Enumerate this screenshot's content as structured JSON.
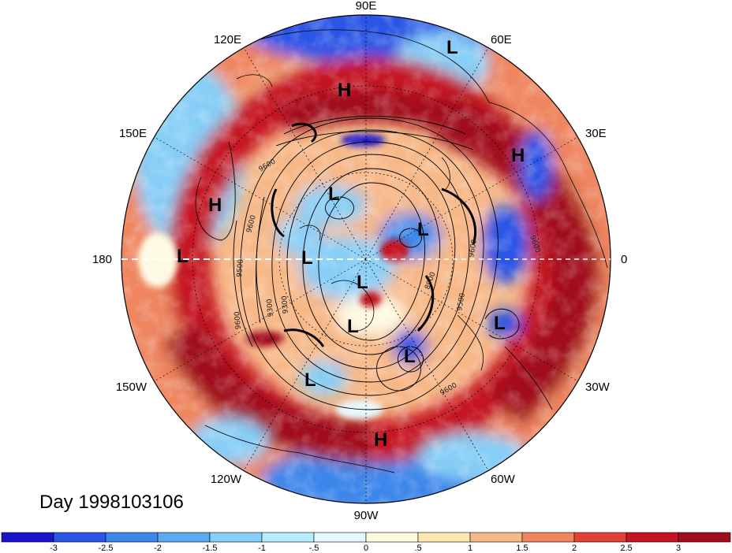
{
  "map": {
    "projection": "north-polar-stereographic",
    "date_label": "Day 1998103106",
    "longitude_labels": [
      {
        "id": "lon-90e",
        "text": "90E",
        "lon": 90
      },
      {
        "id": "lon-60e",
        "text": "60E",
        "lon": 60
      },
      {
        "id": "lon-120e",
        "text": "120E",
        "lon": 120
      },
      {
        "id": "lon-30e",
        "text": "30E",
        "lon": 30
      },
      {
        "id": "lon-150e",
        "text": "150E",
        "lon": 150
      },
      {
        "id": "lon-0",
        "text": "0",
        "lon": 0
      },
      {
        "id": "lon-180",
        "text": "180",
        "lon": 180
      },
      {
        "id": "lon-30w",
        "text": "30W",
        "lon": -30
      },
      {
        "id": "lon-150w",
        "text": "150W",
        "lon": -150
      },
      {
        "id": "lon-60w",
        "text": "60W",
        "lon": -60
      },
      {
        "id": "lon-120w",
        "text": "120W",
        "lon": -120
      },
      {
        "id": "lon-90w",
        "text": "90W",
        "lon": -90
      }
    ],
    "pressure_centers": [
      {
        "type": "L",
        "label": "L"
      },
      {
        "type": "H",
        "label": "H"
      },
      {
        "type": "H",
        "label": "H"
      },
      {
        "type": "H",
        "label": "H"
      },
      {
        "type": "L",
        "label": "L"
      },
      {
        "type": "L",
        "label": "L"
      },
      {
        "type": "L",
        "label": "L"
      },
      {
        "type": "L",
        "label": "L"
      },
      {
        "type": "L",
        "label": "L"
      },
      {
        "type": "L",
        "label": "L"
      },
      {
        "type": "L",
        "label": "L"
      },
      {
        "type": "L",
        "label": "L"
      },
      {
        "type": "L",
        "label": "L"
      },
      {
        "type": "L",
        "label": "L"
      },
      {
        "type": "H",
        "label": "H"
      }
    ],
    "contour_labels": [
      "9600",
      "9500",
      "9600",
      "9300",
      "9600",
      "9600",
      "9300",
      "9500",
      "9600",
      "9500",
      "8900",
      "9600",
      "9600"
    ]
  },
  "colorbar": {
    "colors": [
      "#1b13c9",
      "#2a55e6",
      "#3d86ea",
      "#5aaaef",
      "#87cef6",
      "#b9ecfb",
      "#e6f8fd",
      "#fefae2",
      "#fde9b0",
      "#f7b888",
      "#ef8660",
      "#e04236",
      "#c51424",
      "#a10c1e"
    ],
    "tick_labels": [
      "-3",
      "-2.5",
      "-2",
      "-1.5",
      "-1",
      "-.5",
      "0",
      ".5",
      "1",
      "1.5",
      "2",
      "2.5",
      "3"
    ]
  }
}
